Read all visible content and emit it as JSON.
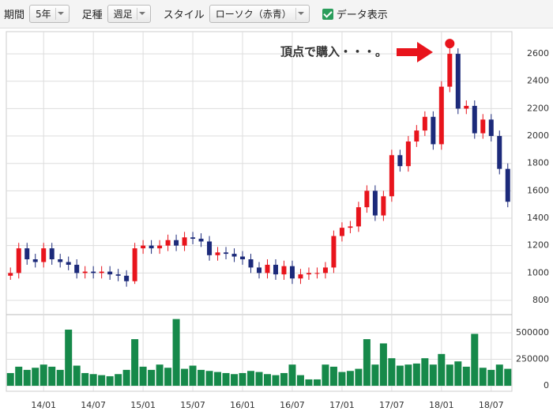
{
  "controls": {
    "period_label": "期間",
    "period": "5年",
    "bar_label": "足種",
    "bar": "週足",
    "style_label": "スタイル",
    "style": "ローソク（赤青）",
    "show_data": "データ表示"
  },
  "chart_data": {
    "type": "candlestick",
    "annotation": "頂点で購入・・・。",
    "x": [
      0,
      1,
      2,
      3,
      4,
      5,
      6,
      7,
      8,
      9,
      10,
      11,
      12,
      13,
      14,
      15,
      16,
      17,
      18,
      19,
      20,
      21,
      22,
      23,
      24,
      25,
      26,
      27,
      28,
      29,
      30,
      31,
      32,
      33,
      34,
      35,
      36,
      37,
      38,
      39,
      40,
      41,
      42,
      43,
      44,
      45,
      46,
      47,
      48,
      49,
      50,
      51,
      52,
      53,
      54,
      55,
      56,
      57,
      58,
      59,
      60
    ],
    "open": [
      980,
      1000,
      1180,
      1100,
      1080,
      1180,
      1100,
      1080,
      1060,
      1000,
      1010,
      1000,
      1010,
      990,
      980,
      940,
      1180,
      1200,
      1180,
      1200,
      1240,
      1200,
      1260,
      1250,
      1230,
      1130,
      1150,
      1140,
      1120,
      1100,
      1040,
      1000,
      1060,
      990,
      1050,
      960,
      990,
      1000,
      1000,
      1040,
      1270,
      1330,
      1340,
      1480,
      1600,
      1420,
      1560,
      1860,
      1780,
      1960,
      2040,
      2140,
      1940,
      2360,
      2600,
      2200,
      2220,
      2020,
      2120,
      2000,
      1760
    ],
    "high": [
      1040,
      1220,
      1220,
      1140,
      1220,
      1220,
      1140,
      1120,
      1100,
      1050,
      1050,
      1050,
      1050,
      1030,
      1020,
      1220,
      1240,
      1240,
      1240,
      1280,
      1280,
      1300,
      1300,
      1290,
      1270,
      1190,
      1190,
      1180,
      1160,
      1140,
      1080,
      1100,
      1100,
      1090,
      1090,
      1030,
      1040,
      1040,
      1080,
      1310,
      1370,
      1380,
      1520,
      1640,
      1640,
      1600,
      1900,
      1900,
      2000,
      2080,
      2180,
      2180,
      2400,
      2640,
      2640,
      2260,
      2260,
      2160,
      2160,
      2040,
      1800
    ],
    "low": [
      950,
      960,
      1060,
      1040,
      1040,
      1060,
      1040,
      1020,
      960,
      960,
      960,
      960,
      950,
      940,
      900,
      920,
      1140,
      1140,
      1140,
      1160,
      1160,
      1160,
      1210,
      1190,
      1090,
      1090,
      1100,
      1080,
      1060,
      1000,
      960,
      960,
      950,
      950,
      920,
      920,
      950,
      960,
      960,
      1000,
      1230,
      1290,
      1300,
      1440,
      1380,
      1380,
      1520,
      1740,
      1740,
      1920,
      2000,
      1900,
      1900,
      2320,
      2160,
      2160,
      1980,
      1980,
      1960,
      1720,
      1480
    ],
    "close": [
      1000,
      1180,
      1100,
      1080,
      1180,
      1100,
      1080,
      1060,
      1000,
      1010,
      1000,
      1010,
      990,
      980,
      940,
      1180,
      1200,
      1180,
      1200,
      1240,
      1200,
      1260,
      1250,
      1230,
      1130,
      1150,
      1140,
      1120,
      1100,
      1040,
      1000,
      1060,
      990,
      1050,
      960,
      990,
      1000,
      1000,
      1040,
      1270,
      1330,
      1340,
      1480,
      1600,
      1420,
      1560,
      1860,
      1780,
      1960,
      2040,
      2140,
      1940,
      2360,
      2600,
      2200,
      2220,
      2020,
      2120,
      2000,
      1760,
      1520
    ],
    "volume": [
      120000,
      180000,
      150000,
      170000,
      200000,
      180000,
      150000,
      530000,
      190000,
      120000,
      110000,
      100000,
      90000,
      110000,
      150000,
      440000,
      180000,
      150000,
      200000,
      170000,
      630000,
      160000,
      190000,
      150000,
      140000,
      130000,
      120000,
      110000,
      120000,
      140000,
      130000,
      110000,
      100000,
      120000,
      200000,
      100000,
      60000,
      60000,
      200000,
      180000,
      130000,
      140000,
      160000,
      440000,
      200000,
      400000,
      260000,
      190000,
      200000,
      210000,
      260000,
      200000,
      300000,
      200000,
      230000,
      180000,
      490000,
      170000,
      150000,
      200000,
      160000
    ],
    "up_color": "#e8141c",
    "down_color": "#1c2a7a",
    "volume_color": "#16894a",
    "annotation_color": "#e8141c",
    "xlim": [
      -0.5,
      60.5
    ],
    "xticks": [
      {
        "value": 4,
        "label": "14/01"
      },
      {
        "value": 10,
        "label": "14/07"
      },
      {
        "value": 16,
        "label": "15/01"
      },
      {
        "value": 22,
        "label": "15/07"
      },
      {
        "value": 28,
        "label": "16/01"
      },
      {
        "value": 34,
        "label": "16/07"
      },
      {
        "value": 40,
        "label": "17/01"
      },
      {
        "value": 46,
        "label": "17/07"
      },
      {
        "value": 52,
        "label": "18/01"
      },
      {
        "value": 58,
        "label": "18/07"
      }
    ],
    "ylim": [
      725,
      2762
    ],
    "yticks": [
      800,
      1000,
      1200,
      1400,
      1600,
      1800,
      2000,
      2200,
      2400,
      2600
    ],
    "y2lim": [
      0,
      657000
    ],
    "y2ticks": [
      0,
      250000,
      500000
    ],
    "grid": true
  }
}
